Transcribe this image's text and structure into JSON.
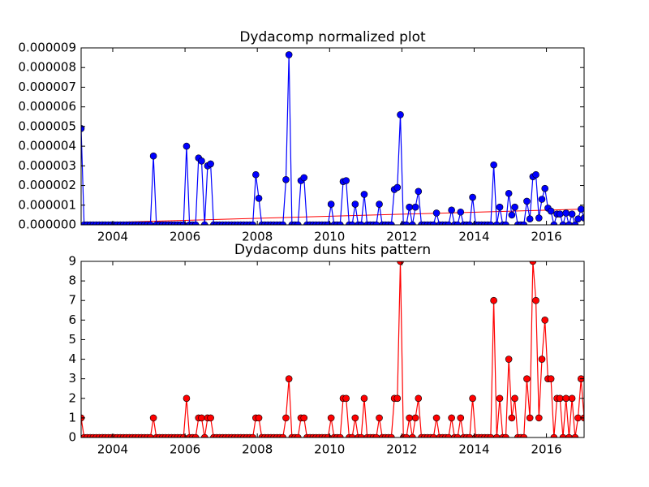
{
  "chart_data": [
    {
      "type": "line",
      "title": "Dydacomp normalized plot",
      "x": [
        2003.125,
        2003.208,
        2003.292,
        2003.375,
        2003.458,
        2003.542,
        2003.625,
        2003.708,
        2003.792,
        2003.875,
        2003.958,
        2004.042,
        2004.125,
        2004.208,
        2004.292,
        2004.375,
        2004.458,
        2004.542,
        2004.625,
        2004.708,
        2004.792,
        2004.875,
        2004.958,
        2005.042,
        2005.125,
        2005.208,
        2005.292,
        2005.375,
        2005.458,
        2005.542,
        2005.625,
        2005.708,
        2005.792,
        2005.875,
        2005.958,
        2006.042,
        2006.125,
        2006.208,
        2006.292,
        2006.375,
        2006.458,
        2006.542,
        2006.625,
        2006.708,
        2006.792,
        2006.875,
        2006.958,
        2007.042,
        2007.125,
        2007.208,
        2007.292,
        2007.375,
        2007.458,
        2007.542,
        2007.625,
        2007.708,
        2007.792,
        2007.875,
        2007.958,
        2008.042,
        2008.125,
        2008.208,
        2008.292,
        2008.375,
        2008.458,
        2008.542,
        2008.625,
        2008.708,
        2008.792,
        2008.875,
        2008.958,
        2009.042,
        2009.125,
        2009.208,
        2009.292,
        2009.375,
        2009.458,
        2009.542,
        2009.625,
        2009.708,
        2009.792,
        2009.875,
        2009.958,
        2010.042,
        2010.125,
        2010.208,
        2010.292,
        2010.375,
        2010.458,
        2010.542,
        2010.625,
        2010.708,
        2010.792,
        2010.875,
        2010.958,
        2011.042,
        2011.125,
        2011.208,
        2011.292,
        2011.375,
        2011.458,
        2011.542,
        2011.625,
        2011.708,
        2011.792,
        2011.875,
        2011.958,
        2012.042,
        2012.125,
        2012.208,
        2012.292,
        2012.375,
        2012.458,
        2012.542,
        2012.625,
        2012.708,
        2012.792,
        2012.875,
        2012.958,
        2013.042,
        2013.125,
        2013.208,
        2013.292,
        2013.375,
        2013.458,
        2013.542,
        2013.625,
        2013.708,
        2013.792,
        2013.875,
        2013.958,
        2014.042,
        2014.125,
        2014.208,
        2014.292,
        2014.375,
        2014.458,
        2014.542,
        2014.625,
        2014.708,
        2014.792,
        2014.875,
        2014.958,
        2015.042,
        2015.125,
        2015.208,
        2015.292,
        2015.375,
        2015.458,
        2015.542,
        2015.625,
        2015.708,
        2015.792,
        2015.875,
        2015.958,
        2016.042,
        2016.125,
        2016.208,
        2016.292,
        2016.375,
        2016.458,
        2016.542,
        2016.625,
        2016.708,
        2016.792,
        2016.875,
        2016.958,
        2017.042
      ],
      "series": [
        {
          "color": "#0000ff",
          "values": [
            4.9e-06,
            0,
            0,
            0,
            0,
            0,
            0,
            0,
            0,
            0,
            0,
            0,
            0,
            0,
            0,
            0,
            0,
            0,
            0,
            0,
            0,
            0,
            0,
            0,
            3.5e-06,
            0,
            0,
            0,
            0,
            0,
            0,
            0,
            0,
            0,
            0,
            4e-06,
            0,
            0,
            0,
            3.4e-06,
            3.25e-06,
            0,
            3e-06,
            3.1e-06,
            0,
            0,
            0,
            0,
            0,
            0,
            0,
            0,
            0,
            0,
            0,
            0,
            0,
            0,
            2.55e-06,
            1.35e-06,
            0,
            0,
            0,
            0,
            0,
            0,
            0,
            0,
            2.3e-06,
            8.65e-06,
            0,
            0,
            0,
            2.25e-06,
            2.4e-06,
            0,
            0,
            0,
            0,
            0,
            0,
            0,
            0,
            1.05e-06,
            0,
            0,
            0,
            2.2e-06,
            2.25e-06,
            0,
            0,
            1.05e-06,
            0,
            0,
            1.55e-06,
            0,
            0,
            0,
            0,
            1.05e-06,
            0,
            0,
            0,
            0,
            1.8e-06,
            1.9e-06,
            5.6e-06,
            0,
            0,
            9e-07,
            0,
            9e-07,
            1.7e-06,
            0,
            0,
            0,
            0,
            0,
            6e-07,
            0,
            0,
            0,
            0,
            7.5e-07,
            0,
            0,
            6.5e-07,
            0,
            0,
            0,
            1.4e-06,
            0,
            0,
            0,
            0,
            0,
            0,
            3.05e-06,
            0,
            9e-07,
            0,
            0,
            1.6e-06,
            5e-07,
            9e-07,
            0,
            0,
            0,
            1.2e-06,
            3e-07,
            2.45e-06,
            2.55e-06,
            3.5e-07,
            1.3e-06,
            1.85e-06,
            8.5e-07,
            7e-07,
            0,
            5.5e-07,
            5.5e-07,
            0,
            6e-07,
            0,
            5.5e-07,
            0,
            3e-07,
            8e-07,
            3.5e-07
          ]
        }
      ],
      "trendline": {
        "color": "#ff0000",
        "x": [
          2003.125,
          2017.042
        ],
        "values": [
          8e-08,
          8e-07
        ]
      },
      "xlim": [
        2003.125,
        2017.042
      ],
      "xticks": [
        2004,
        2006,
        2008,
        2010,
        2012,
        2014,
        2016
      ],
      "ylim": [
        0,
        9e-06
      ],
      "yticks": [
        {
          "value": 0,
          "label": "0.000000"
        },
        {
          "value": 1e-06,
          "label": "0.000001"
        },
        {
          "value": 2e-06,
          "label": "0.000002"
        },
        {
          "value": 3e-06,
          "label": "0.000003"
        },
        {
          "value": 4e-06,
          "label": "0.000004"
        },
        {
          "value": 5e-06,
          "label": "0.000005"
        },
        {
          "value": 6e-06,
          "label": "0.000006"
        },
        {
          "value": 7e-06,
          "label": "0.000007"
        },
        {
          "value": 8e-06,
          "label": "0.000008"
        },
        {
          "value": 9e-06,
          "label": "0.000009"
        }
      ]
    },
    {
      "type": "line",
      "title": "Dydacomp duns hits pattern",
      "x": [
        2003.125,
        2003.208,
        2003.292,
        2003.375,
        2003.458,
        2003.542,
        2003.625,
        2003.708,
        2003.792,
        2003.875,
        2003.958,
        2004.042,
        2004.125,
        2004.208,
        2004.292,
        2004.375,
        2004.458,
        2004.542,
        2004.625,
        2004.708,
        2004.792,
        2004.875,
        2004.958,
        2005.042,
        2005.125,
        2005.208,
        2005.292,
        2005.375,
        2005.458,
        2005.542,
        2005.625,
        2005.708,
        2005.792,
        2005.875,
        2005.958,
        2006.042,
        2006.125,
        2006.208,
        2006.292,
        2006.375,
        2006.458,
        2006.542,
        2006.625,
        2006.708,
        2006.792,
        2006.875,
        2006.958,
        2007.042,
        2007.125,
        2007.208,
        2007.292,
        2007.375,
        2007.458,
        2007.542,
        2007.625,
        2007.708,
        2007.792,
        2007.875,
        2007.958,
        2008.042,
        2008.125,
        2008.208,
        2008.292,
        2008.375,
        2008.458,
        2008.542,
        2008.625,
        2008.708,
        2008.792,
        2008.875,
        2008.958,
        2009.042,
        2009.125,
        2009.208,
        2009.292,
        2009.375,
        2009.458,
        2009.542,
        2009.625,
        2009.708,
        2009.792,
        2009.875,
        2009.958,
        2010.042,
        2010.125,
        2010.208,
        2010.292,
        2010.375,
        2010.458,
        2010.542,
        2010.625,
        2010.708,
        2010.792,
        2010.875,
        2010.958,
        2011.042,
        2011.125,
        2011.208,
        2011.292,
        2011.375,
        2011.458,
        2011.542,
        2011.625,
        2011.708,
        2011.792,
        2011.875,
        2011.958,
        2012.042,
        2012.125,
        2012.208,
        2012.292,
        2012.375,
        2012.458,
        2012.542,
        2012.625,
        2012.708,
        2012.792,
        2012.875,
        2012.958,
        2013.042,
        2013.125,
        2013.208,
        2013.292,
        2013.375,
        2013.458,
        2013.542,
        2013.625,
        2013.708,
        2013.792,
        2013.875,
        2013.958,
        2014.042,
        2014.125,
        2014.208,
        2014.292,
        2014.375,
        2014.458,
        2014.542,
        2014.625,
        2014.708,
        2014.792,
        2014.875,
        2014.958,
        2015.042,
        2015.125,
        2015.208,
        2015.292,
        2015.375,
        2015.458,
        2015.542,
        2015.625,
        2015.708,
        2015.792,
        2015.875,
        2015.958,
        2016.042,
        2016.125,
        2016.208,
        2016.292,
        2016.375,
        2016.458,
        2016.542,
        2016.625,
        2016.708,
        2016.792,
        2016.875,
        2016.958,
        2017.042
      ],
      "series": [
        {
          "color": "#ff0000",
          "values": [
            1,
            0,
            0,
            0,
            0,
            0,
            0,
            0,
            0,
            0,
            0,
            0,
            0,
            0,
            0,
            0,
            0,
            0,
            0,
            0,
            0,
            0,
            0,
            0,
            1,
            0,
            0,
            0,
            0,
            0,
            0,
            0,
            0,
            0,
            0,
            2,
            0,
            0,
            0,
            1,
            1,
            0,
            1,
            1,
            0,
            0,
            0,
            0,
            0,
            0,
            0,
            0,
            0,
            0,
            0,
            0,
            0,
            0,
            1,
            1,
            0,
            0,
            0,
            0,
            0,
            0,
            0,
            0,
            1,
            3,
            0,
            0,
            0,
            1,
            1,
            0,
            0,
            0,
            0,
            0,
            0,
            0,
            0,
            1,
            0,
            0,
            0,
            2,
            2,
            0,
            0,
            1,
            0,
            0,
            2,
            0,
            0,
            0,
            0,
            1,
            0,
            0,
            0,
            0,
            2,
            2,
            9,
            0,
            0,
            1,
            0,
            1,
            2,
            0,
            0,
            0,
            0,
            0,
            1,
            0,
            0,
            0,
            0,
            1,
            0,
            0,
            1,
            0,
            0,
            0,
            2,
            0,
            0,
            0,
            0,
            0,
            0,
            7,
            0,
            2,
            0,
            0,
            4,
            1,
            2,
            0,
            0,
            0,
            3,
            1,
            9,
            7,
            1,
            4,
            6,
            3,
            3,
            0,
            2,
            2,
            0,
            2,
            0,
            2,
            0,
            1,
            3,
            1
          ]
        }
      ],
      "xlim": [
        2003.125,
        2017.042
      ],
      "xticks": [
        2004,
        2006,
        2008,
        2010,
        2012,
        2014,
        2016
      ],
      "ylim": [
        0,
        9
      ],
      "yticks": [
        0,
        1,
        2,
        3,
        4,
        5,
        6,
        7,
        8,
        9
      ]
    }
  ]
}
